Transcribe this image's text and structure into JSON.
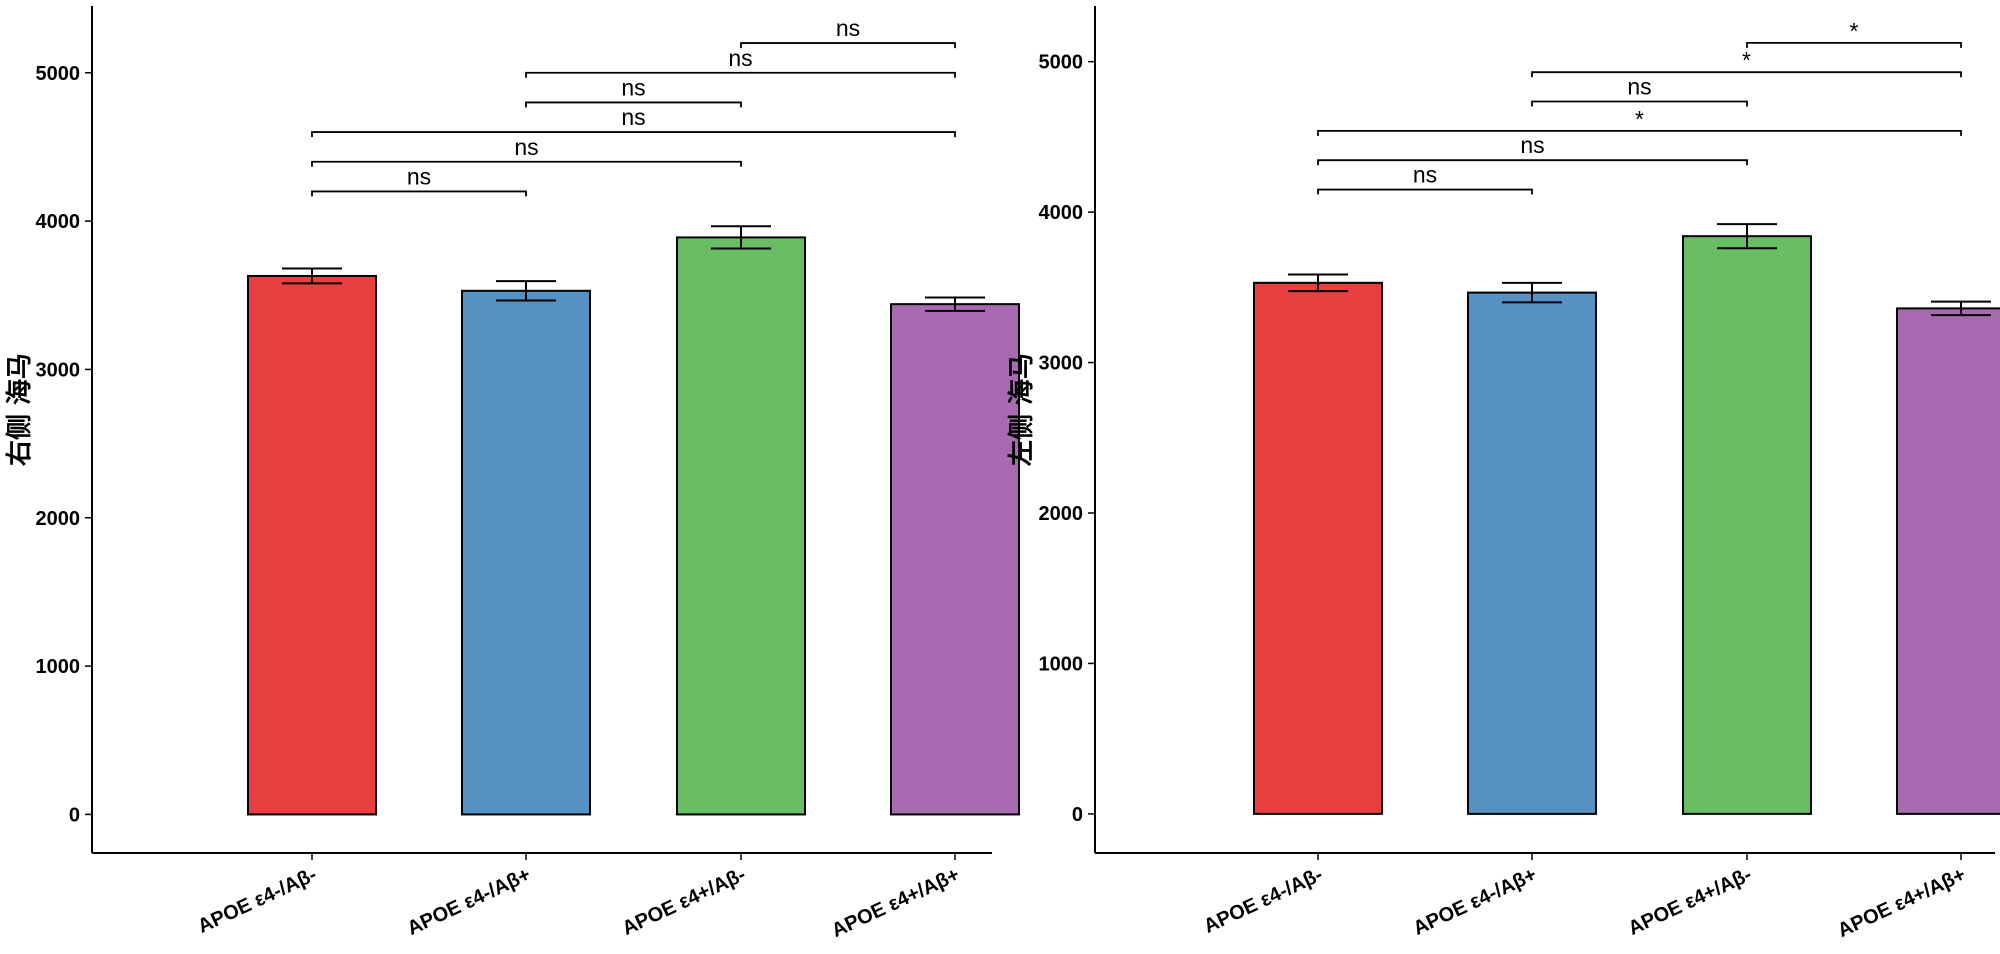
{
  "chart_data": [
    {
      "type": "bar",
      "ylabel": "右侧 海马",
      "ylim": [
        -260,
        5450
      ],
      "yticks": [
        0,
        1000,
        2000,
        3000,
        4000,
        5000
      ],
      "categories": [
        "APOE ε4-/Aβ-",
        "APOE ε4-/Aβ+",
        "APOE ε4+/Aβ-",
        "APOE ε4+/Aβ+"
      ],
      "values": [
        3630,
        3530,
        3890,
        3440
      ],
      "errors": [
        50,
        65,
        75,
        45
      ],
      "colors": [
        "#E83E40",
        "#5592C3",
        "#69BD63",
        "#A86BB2"
      ],
      "comparisons": [
        {
          "from": 0,
          "to": 1,
          "y": 4200,
          "label": "ns"
        },
        {
          "from": 0,
          "to": 2,
          "y": 4400,
          "label": "ns"
        },
        {
          "from": 0,
          "to": 3,
          "y": 4600,
          "label": "ns"
        },
        {
          "from": 1,
          "to": 2,
          "y": 4800,
          "label": "ns"
        },
        {
          "from": 1,
          "to": 3,
          "y": 5000,
          "label": "ns"
        },
        {
          "from": 2,
          "to": 3,
          "y": 5200,
          "label": "ns"
        }
      ]
    },
    {
      "type": "bar",
      "ylabel": "左侧 海马",
      "ylim": [
        -260,
        5370
      ],
      "yticks": [
        0,
        1000,
        2000,
        3000,
        4000,
        5000
      ],
      "categories": [
        "APOE ε4-/Aβ-",
        "APOE ε4-/Aβ+",
        "APOE ε4+/Aβ-",
        "APOE ε4+/Aβ+"
      ],
      "values": [
        3530,
        3465,
        3840,
        3360
      ],
      "errors": [
        55,
        65,
        80,
        45
      ],
      "colors": [
        "#E83E40",
        "#5592C3",
        "#69BD63",
        "#A86BB2"
      ],
      "comparisons": [
        {
          "from": 0,
          "to": 1,
          "y": 4150,
          "label": "ns"
        },
        {
          "from": 0,
          "to": 2,
          "y": 4345,
          "label": "ns"
        },
        {
          "from": 0,
          "to": 3,
          "y": 4540,
          "label": "*"
        },
        {
          "from": 1,
          "to": 2,
          "y": 4735,
          "label": "ns"
        },
        {
          "from": 1,
          "to": 3,
          "y": 4930,
          "label": "*"
        },
        {
          "from": 2,
          "to": 3,
          "y": 5125,
          "label": "*"
        }
      ]
    }
  ]
}
